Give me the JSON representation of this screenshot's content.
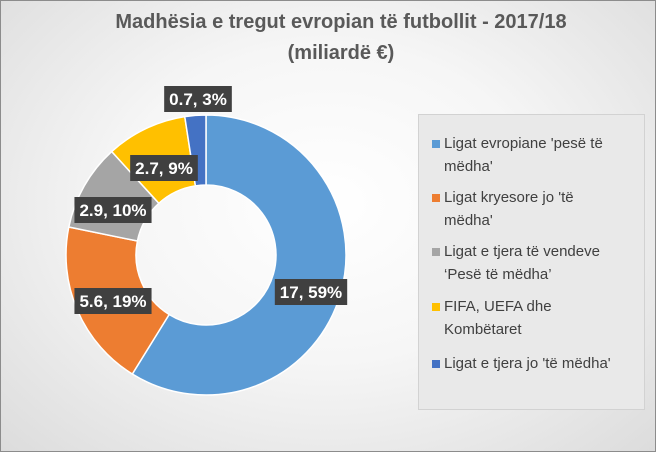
{
  "title_line1": "Madhësia e tregut evropian të futbollit - 2017/18",
  "title_line2": "(miliardë €)",
  "chart_data": {
    "type": "pie",
    "variant": "doughnut",
    "title": "Madhësia e tregut evropian të futbollit - 2017/18 (miliardë €)",
    "legend_position": "right",
    "categories": [
      "Ligat evropiane 'pesë të mëdha'",
      "Ligat kryesore jo 'të mëdha'",
      "Ligat e tjera të vendeve ‘Pesë të mëdha’",
      "FIFA, UEFA dhe Kombëtaret",
      "Ligat e tjera jo 'të mëdha'"
    ],
    "legend_lines": [
      [
        "Ligat evropiane 'pesë të",
        "mëdha'"
      ],
      [
        "Ligat kryesore jo 'të",
        "mëdha'"
      ],
      [
        "Ligat e tjera të vendeve",
        "‘Pesë të mëdha’"
      ],
      [
        "FIFA, UEFA dhe",
        "Kombëtaret"
      ],
      [
        "Ligat e tjera jo 'të mëdha'"
      ]
    ],
    "values": [
      17,
      5.6,
      2.9,
      2.7,
      0.7
    ],
    "percentages": [
      59,
      19,
      10,
      9,
      3
    ],
    "data_labels": [
      "17, 59%",
      "5.6, 19%",
      "2.9, 10%",
      "2.7, 9%",
      "0.7, 3%"
    ],
    "colors": [
      "#5b9bd5",
      "#ed7d31",
      "#a5a5a5",
      "#ffc000",
      "#4472c4"
    ]
  }
}
